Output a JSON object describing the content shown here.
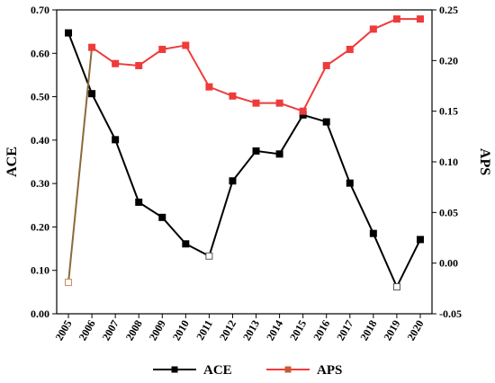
{
  "chart_data": {
    "type": "line",
    "categories": [
      "2005",
      "2006",
      "2007",
      "2008",
      "2009",
      "2010",
      "2011",
      "2012",
      "2013",
      "2014",
      "2015",
      "2016",
      "2017",
      "2018",
      "2019",
      "2020"
    ],
    "series": [
      {
        "name": "ACE",
        "axis": "left",
        "color": "#000000",
        "marker": "filled-square",
        "hollow_markers": [
          "2011",
          "2019"
        ],
        "values": [
          0.647,
          0.507,
          0.401,
          0.257,
          0.222,
          0.161,
          0.133,
          0.306,
          0.375,
          0.368,
          0.458,
          0.442,
          0.301,
          0.185,
          0.062,
          0.171
        ]
      },
      {
        "name": "APS",
        "axis": "right",
        "color": "#ef3b3b",
        "first_segment_color": "#8a6a3a",
        "marker": "filled-square",
        "hollow_markers": [
          "2005"
        ],
        "values": [
          -0.019,
          0.213,
          0.197,
          0.195,
          0.211,
          0.215,
          0.174,
          0.165,
          0.158,
          0.158,
          0.15,
          0.195,
          0.211,
          0.231,
          0.241,
          0.241
        ]
      }
    ],
    "ylabel": "ACE",
    "y2label": "APS",
    "ylim": [
      0,
      0.7
    ],
    "y2lim": [
      -0.05,
      0.25
    ],
    "yticks": [
      "0.00",
      "0.10",
      "0.20",
      "0.30",
      "0.40",
      "0.50",
      "0.60",
      "0.70"
    ],
    "y2ticks": [
      "-0.05",
      "0.00",
      "0.05",
      "0.10",
      "0.15",
      "0.20",
      "0.25"
    ],
    "grid": false,
    "legend_position": "bottom-center"
  }
}
